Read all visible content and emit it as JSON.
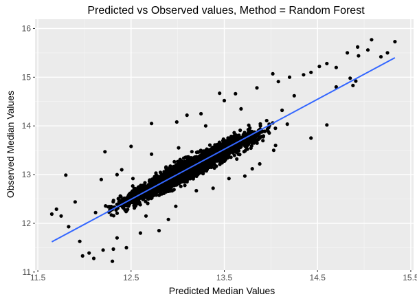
{
  "chart_data": {
    "type": "scatter",
    "title": "Predicted vs Observed values, Method = Random Forest",
    "xlabel": "Predicted Median Values",
    "ylabel": "Observed Median Values",
    "xlim": [
      11.47,
      15.53
    ],
    "ylim": [
      11.04,
      16.19
    ],
    "x_ticks": [
      "11.5",
      "12.5",
      "13.5",
      "14.5",
      "15.5"
    ],
    "x_tick_values": [
      11.5,
      12.5,
      13.5,
      14.5,
      15.5
    ],
    "x_minor_ticks": [
      12.0,
      13.0,
      14.0,
      15.0
    ],
    "y_ticks": [
      "11",
      "12",
      "13",
      "14",
      "15",
      "16"
    ],
    "y_tick_values": [
      11,
      12,
      13,
      14,
      15,
      16
    ],
    "y_minor_ticks": [
      11.5,
      12.5,
      13.5,
      14.5,
      15.5
    ],
    "grid": true,
    "fit_line": {
      "x": [
        11.65,
        15.33
      ],
      "y": [
        11.62,
        15.4
      ],
      "color": "#3366ff"
    },
    "point_color": "#000000",
    "panel_color": "#ebebeb",
    "dense_band": {
      "x_range": [
        11.9,
        14.9
      ],
      "slope": 1.0,
      "intercept": 0.0
    },
    "points": [
      [
        11.65,
        12.19
      ],
      [
        11.7,
        12.29
      ],
      [
        11.75,
        12.15
      ],
      [
        11.8,
        12.99
      ],
      [
        11.83,
        11.93
      ],
      [
        11.9,
        12.44
      ],
      [
        11.95,
        11.63
      ],
      [
        12.05,
        11.39
      ],
      [
        12.1,
        11.28
      ],
      [
        12.3,
        11.22
      ],
      [
        12.22,
        13.47
      ],
      [
        12.35,
        13.0
      ],
      [
        12.5,
        13.58
      ],
      [
        12.72,
        14.05
      ],
      [
        12.99,
        14.08
      ],
      [
        13.1,
        14.22
      ],
      [
        13.25,
        14.25
      ],
      [
        13.45,
        14.67
      ],
      [
        13.5,
        14.52
      ],
      [
        13.62,
        14.66
      ],
      [
        13.85,
        14.78
      ],
      [
        14.02,
        15.07
      ],
      [
        14.08,
        14.91
      ],
      [
        14.2,
        15.0
      ],
      [
        14.35,
        15.05
      ],
      [
        14.43,
        15.1
      ],
      [
        14.52,
        15.22
      ],
      [
        14.6,
        15.28
      ],
      [
        14.82,
        15.5
      ],
      [
        14.94,
        15.44
      ],
      [
        15.08,
        15.77
      ],
      [
        15.18,
        15.42
      ],
      [
        15.25,
        15.5
      ],
      [
        15.33,
        15.73
      ],
      [
        14.93,
        15.62
      ],
      [
        14.7,
        15.2
      ],
      [
        14.85,
        14.98
      ],
      [
        14.91,
        14.92
      ],
      [
        14.6,
        14.02
      ],
      [
        14.43,
        13.75
      ],
      [
        14.03,
        13.5
      ],
      [
        13.8,
        13.12
      ],
      [
        13.55,
        12.92
      ],
      [
        13.2,
        12.67
      ],
      [
        12.9,
        12.08
      ],
      [
        12.6,
        11.8
      ],
      [
        12.45,
        11.5
      ],
      [
        12.8,
        11.85
      ],
      [
        12.31,
        11.47
      ],
      [
        12.52,
        12.92
      ],
      [
        12.72,
        13.42
      ],
      [
        13.01,
        13.55
      ],
      [
        14.12,
        14.32
      ],
      [
        14.7,
        14.8
      ],
      [
        15.04,
        15.56
      ],
      [
        14.88,
        14.83
      ],
      [
        12.18,
        12.9
      ],
      [
        12.4,
        13.1
      ],
      [
        13.3,
        14.0
      ],
      [
        13.68,
        14.35
      ],
      [
        14.25,
        14.62
      ],
      [
        14.05,
        13.6
      ],
      [
        13.72,
        12.97
      ],
      [
        13.38,
        12.72
      ],
      [
        12.98,
        12.35
      ],
      [
        12.66,
        12.15
      ],
      [
        12.35,
        11.7
      ],
      [
        12.2,
        11.45
      ],
      [
        11.98,
        11.33
      ],
      [
        13.88,
        13.22
      ]
    ]
  }
}
